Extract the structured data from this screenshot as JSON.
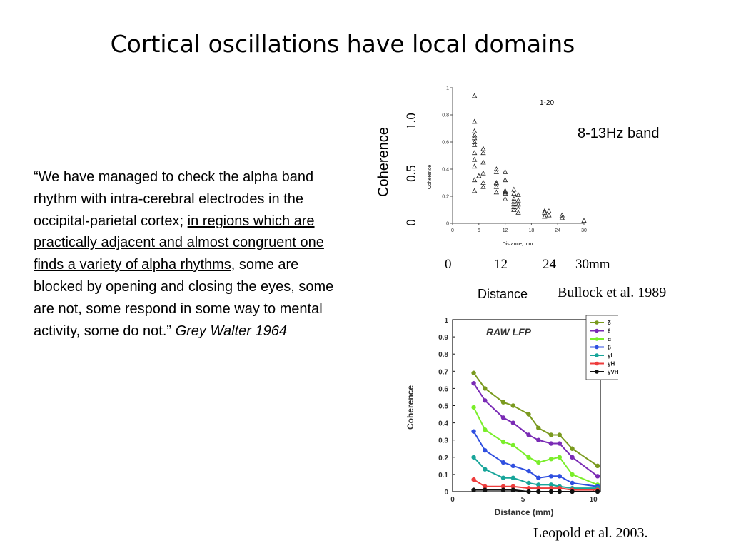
{
  "slide": {
    "title": "Cortical oscillations have local domains",
    "quote": {
      "part1": "“We have managed to check the alpha band rhythm with intra-cerebral electrodes in the occipital-parietal cortex; ",
      "underlined": "in regions which are practically adjacent and almost congruent one finds a variety of alpha rhythms",
      "part2": ", some are blocked by opening and closing the eyes, some are not, some respond in some way to mental activity, some do not.” ",
      "attribution": "Grey Walter 1964"
    },
    "top_figure": {
      "band_label": "8-13Hz band",
      "ylabel": "Coherence",
      "yticks": [
        "0",
        "0.5",
        "1.0"
      ],
      "xlabel": "Distance",
      "xticks": [
        "0",
        "12",
        "24",
        "30mm"
      ],
      "citation": "Bullock et al. 1989",
      "inner_label": "1-20",
      "inner_ylabel": "Coherence",
      "inner_xlabel": "Distance, mm.",
      "inner_xticks": [
        "0",
        "6",
        "12",
        "18",
        "24",
        "30"
      ],
      "inner_yticks": [
        "0",
        "0.2",
        "0.4",
        "0.6",
        "0.8",
        "1"
      ]
    },
    "bottom_figure": {
      "title": "RAW LFP",
      "ylabel": "Coherence",
      "xlabel": "Distance (mm)",
      "citation": "Leopold et al. 2003."
    }
  },
  "chart_data": [
    {
      "type": "scatter",
      "title": "1-20",
      "xlabel": "Distance, mm.",
      "ylabel": "Coherence",
      "xlim": [
        0,
        30
      ],
      "ylim": [
        0,
        1
      ],
      "marker": "open-triangle",
      "points": [
        [
          5,
          0.94
        ],
        [
          5,
          0.75
        ],
        [
          5,
          0.68
        ],
        [
          5,
          0.65
        ],
        [
          5,
          0.63
        ],
        [
          5,
          0.6
        ],
        [
          5,
          0.58
        ],
        [
          5,
          0.52
        ],
        [
          5,
          0.47
        ],
        [
          5,
          0.42
        ],
        [
          5,
          0.32
        ],
        [
          5,
          0.24
        ],
        [
          6,
          0.35
        ],
        [
          7,
          0.55
        ],
        [
          7,
          0.52
        ],
        [
          7,
          0.45
        ],
        [
          7,
          0.37
        ],
        [
          7,
          0.3
        ],
        [
          7,
          0.27
        ],
        [
          10,
          0.4
        ],
        [
          10,
          0.38
        ],
        [
          10,
          0.3
        ],
        [
          10,
          0.29
        ],
        [
          10,
          0.27
        ],
        [
          10,
          0.23
        ],
        [
          12,
          0.38
        ],
        [
          12,
          0.32
        ],
        [
          12,
          0.24
        ],
        [
          12,
          0.23
        ],
        [
          12,
          0.22
        ],
        [
          12,
          0.18
        ],
        [
          14,
          0.25
        ],
        [
          14,
          0.22
        ],
        [
          14,
          0.18
        ],
        [
          14,
          0.16
        ],
        [
          14,
          0.14
        ],
        [
          14,
          0.12
        ],
        [
          14,
          0.1
        ],
        [
          15,
          0.21
        ],
        [
          15,
          0.17
        ],
        [
          15,
          0.14
        ],
        [
          15,
          0.11
        ],
        [
          15,
          0.08
        ],
        [
          21,
          0.09
        ],
        [
          21,
          0.08
        ],
        [
          21,
          0.05
        ],
        [
          22,
          0.09
        ],
        [
          22,
          0.06
        ],
        [
          25,
          0.06
        ],
        [
          25,
          0.04
        ],
        [
          30,
          0.02
        ]
      ]
    },
    {
      "type": "line",
      "title": "RAW LFP",
      "xlabel": "Distance (mm)",
      "ylabel": "Coherence",
      "xlim": [
        0,
        10.5
      ],
      "ylim": [
        0,
        1
      ],
      "x": [
        1.5,
        2.3,
        3.6,
        4.3,
        5.4,
        6.1,
        7.0,
        7.6,
        8.5,
        10.3
      ],
      "series": [
        {
          "name": "δ",
          "color": "#7a9a1e",
          "values": [
            0.69,
            0.6,
            0.52,
            0.5,
            0.45,
            0.37,
            0.33,
            0.33,
            0.25,
            0.15
          ]
        },
        {
          "name": "θ",
          "color": "#7a2bb5",
          "values": [
            0.63,
            0.53,
            0.43,
            0.4,
            0.33,
            0.3,
            0.28,
            0.28,
            0.2,
            0.09
          ]
        },
        {
          "name": "α",
          "color": "#7aee2a",
          "values": [
            0.49,
            0.36,
            0.29,
            0.27,
            0.2,
            0.17,
            0.19,
            0.2,
            0.1,
            0.04
          ]
        },
        {
          "name": "β",
          "color": "#2f4fe0",
          "values": [
            0.35,
            0.24,
            0.17,
            0.15,
            0.12,
            0.08,
            0.09,
            0.09,
            0.05,
            0.03
          ]
        },
        {
          "name": "γL",
          "color": "#18a59a",
          "values": [
            0.2,
            0.13,
            0.08,
            0.08,
            0.05,
            0.04,
            0.04,
            0.03,
            0.02,
            0.02
          ]
        },
        {
          "name": "γH",
          "color": "#ee3d3d",
          "values": [
            0.07,
            0.03,
            0.03,
            0.03,
            0.02,
            0.02,
            0.02,
            0.02,
            0.01,
            0.01
          ]
        },
        {
          "name": "γVH",
          "color": "#111111",
          "values": [
            0.01,
            0.01,
            0.01,
            0.01,
            0.0,
            0.0,
            0.0,
            0.0,
            0.0,
            0.0
          ]
        }
      ]
    }
  ]
}
